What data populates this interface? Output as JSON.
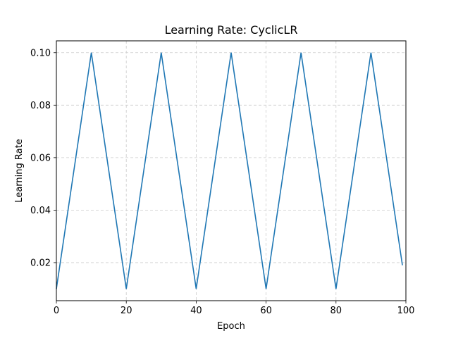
{
  "chart_data": {
    "type": "line",
    "title": "Learning Rate: CyclicLR",
    "xlabel": "Epoch",
    "ylabel": "Learning Rate",
    "xlim": [
      0,
      100
    ],
    "ylim": [
      0.0055,
      0.1045
    ],
    "xticks": [
      0,
      20,
      40,
      60,
      80,
      100
    ],
    "xtick_labels": [
      "0",
      "20",
      "40",
      "60",
      "80",
      "100"
    ],
    "yticks": [
      0.02,
      0.04,
      0.06,
      0.08,
      0.1
    ],
    "ytick_labels": [
      "0.02",
      "0.04",
      "0.06",
      "0.08",
      "0.10"
    ],
    "grid": true,
    "line_color": "#1f77b4",
    "grid_color": "#cccccc",
    "series": [
      {
        "x": [
          0,
          10,
          20,
          30,
          40,
          50,
          60,
          70,
          80,
          90,
          99
        ],
        "values": [
          0.01,
          0.1,
          0.01,
          0.1,
          0.01,
          0.1,
          0.01,
          0.1,
          0.01,
          0.1,
          0.019
        ]
      }
    ]
  }
}
